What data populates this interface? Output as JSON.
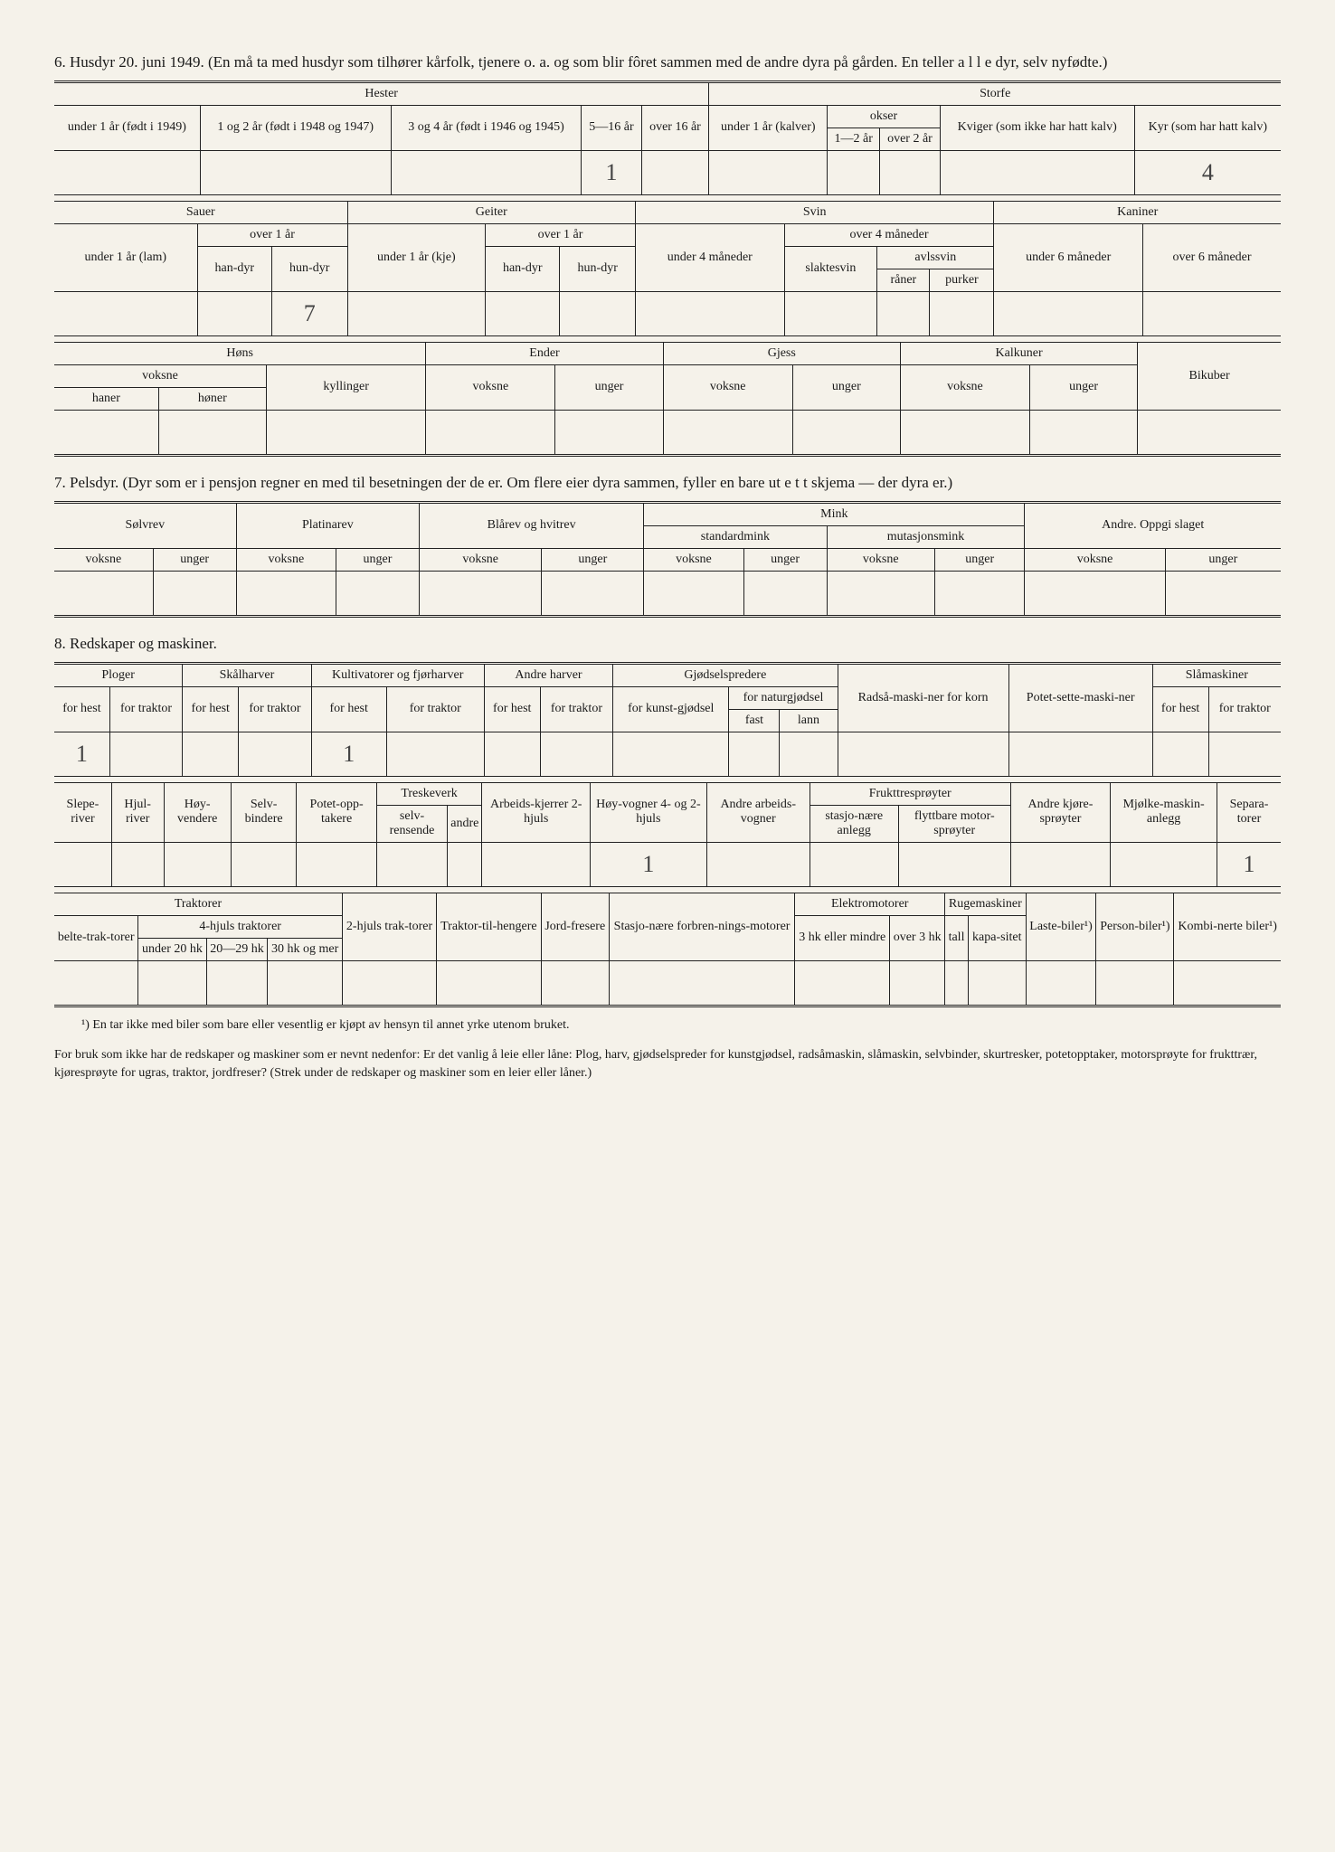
{
  "section6": {
    "heading": "6. Husdyr 20. juni 1949. (En må ta med husdyr som tilhører kårfolk, tjenere o. a. og som blir fôret sammen med de andre dyra på gården. En teller a l l e dyr, selv nyfødte.)",
    "hester": {
      "group": "Hester",
      "under1": "under 1 år (født i 1949)",
      "col2": "1 og 2 år (født i 1948 og 1947)",
      "col3": "3 og 4 år (født i 1946 og 1945)",
      "col4": "5—16 år",
      "col5": "over 16 år"
    },
    "storfe": {
      "group": "Storfe",
      "under1": "under 1 år (kalver)",
      "okser": "okser",
      "okser1": "1—2 år",
      "okser2": "over 2 år",
      "kviger": "Kviger (som ikke har hatt kalv)",
      "kyr": "Kyr (som har hatt kalv)"
    },
    "values_row1": {
      "col4": "1",
      "kyr": "4"
    },
    "sauer": {
      "group": "Sauer",
      "under1": "under 1 år (lam)",
      "over1": "over 1 år",
      "handyr": "han-dyr",
      "hundyr": "hun-dyr"
    },
    "geiter": {
      "group": "Geiter",
      "under1": "under 1 år (kje)",
      "over1": "over 1 år",
      "handyr": "han-dyr",
      "hundyr": "hun-dyr"
    },
    "svin": {
      "group": "Svin",
      "under4": "under 4 måneder",
      "over4": "over 4 måneder",
      "slaktesvin": "slaktesvin",
      "avlssvin": "avlssvin",
      "raner": "råner",
      "purker": "purker"
    },
    "kaniner": {
      "group": "Kaniner",
      "under6": "under 6 måneder",
      "over6": "over 6 måneder"
    },
    "values_row2": {
      "sauer_hundyr": "7"
    },
    "hons": {
      "group": "Høns",
      "voksne": "voksne",
      "haner": "haner",
      "honer": "høner",
      "kyllinger": "kyllinger"
    },
    "ender": {
      "group": "Ender",
      "voksne": "voksne",
      "unger": "unger"
    },
    "gjess": {
      "group": "Gjess",
      "voksne": "voksne",
      "unger": "unger"
    },
    "kalkuner": {
      "group": "Kalkuner",
      "voksne": "voksne",
      "unger": "unger"
    },
    "bikuber": "Bikuber"
  },
  "section7": {
    "heading": "7. Pelsdyr. (Dyr som er i pensjon regner en med til besetningen der de er. Om flere eier dyra sammen, fyller en bare ut e t t skjema — der dyra er.)",
    "solvrev": "Sølvrev",
    "platinarev": "Platinarev",
    "blarev": "Blårev og hvitrev",
    "mink": "Mink",
    "standardmink": "standardmink",
    "mutasjonsmink": "mutasjonsmink",
    "andre": "Andre. Oppgi slaget",
    "voksne": "voksne",
    "unger": "unger"
  },
  "section8": {
    "heading": "8. Redskaper og maskiner.",
    "ploger": "Ploger",
    "skalharver": "Skålharver",
    "kultivatorer": "Kultivatorer og fjørharver",
    "andreharver": "Andre harver",
    "gjodselspredere": "Gjødselspredere",
    "forhest": "for hest",
    "fortraktor": "for traktor",
    "forkunstgjodsel": "for kunst-gjødsel",
    "fornaturgjodsel": "for naturgjødsel",
    "fast": "fast",
    "lann": "lann",
    "radsa": "Radså-maski-ner for korn",
    "potetsette": "Potet-sette-maski-ner",
    "slamaskiner": "Slåmaskiner",
    "values_row1": {
      "ploger_hest": "1",
      "kulti_hest": "1"
    },
    "sleperiver": "Slepe-river",
    "hjulriver": "Hjul-river",
    "hoyvendere": "Høy-vendere",
    "selvbindere": "Selv-bindere",
    "potetopptakere": "Potet-opp-takere",
    "treskeverk": "Treskeverk",
    "selvrensende": "selv-rensende",
    "andre_t": "andre",
    "arbeidskjerrer": "Arbeids-kjerrer 2-hjuls",
    "hoyvogner": "Høy-vogner 4- og 2-hjuls",
    "andrearbeidsvogner": "Andre arbeids-vogner",
    "frukttresproyter": "Frukttresprøyter",
    "stasjonaere": "stasjo-nære anlegg",
    "flyttbare": "flyttbare motor-sprøyter",
    "andrekjore": "Andre kjøre-sprøyter",
    "mjolkemaskin": "Mjølke-maskin-anlegg",
    "separatorer": "Separa-torer",
    "values_row2": {
      "hoyvogner": "1",
      "separatorer": "1"
    },
    "traktorer": "Traktorer",
    "beltetraktorer": "belte-trak-torer",
    "firehjuls": "4-hjuls traktorer",
    "under20hk": "under 20 hk",
    "hk2029": "20—29 hk",
    "hk30": "30 hk og mer",
    "tohjuls": "2-hjuls trak-torer",
    "traktortilhengere": "Traktor-til-hengere",
    "jordfresere": "Jord-fresere",
    "stasjforbrmotor": "Stasjo-nære forbren-nings-motorer",
    "elektromotorer": "Elektromotorer",
    "hk3eller": "3 hk eller mindre",
    "over3hk": "over 3 hk",
    "rugemaskiner": "Rugemaskiner",
    "tall": "tall",
    "kapasitet": "kapa-sitet",
    "lastebiler": "Laste-biler¹)",
    "personbiler": "Person-biler¹)",
    "kombinerte": "Kombi-nerte biler¹)"
  },
  "footnote1": "¹) En tar ikke med biler som bare eller vesentlig er kjøpt av hensyn til annet yrke utenom bruket.",
  "footnote2": "For bruk som ikke har de redskaper og maskiner som er nevnt nedenfor: Er det vanlig å leie eller låne: Plog, harv, gjødselspreder for kunstgjødsel, radsåmaskin, slåmaskin, selvbinder, skurtresker, potetopptaker, motorsprøyte for frukttrær, kjøresprøyte for ugras, traktor, jordfreser? (Strek under de redskaper og maskiner som en leier eller låner.)",
  "colors": {
    "background": "#f5f2ea",
    "text": "#1a1a1a",
    "border": "#222222",
    "handwritten": "#444444"
  }
}
